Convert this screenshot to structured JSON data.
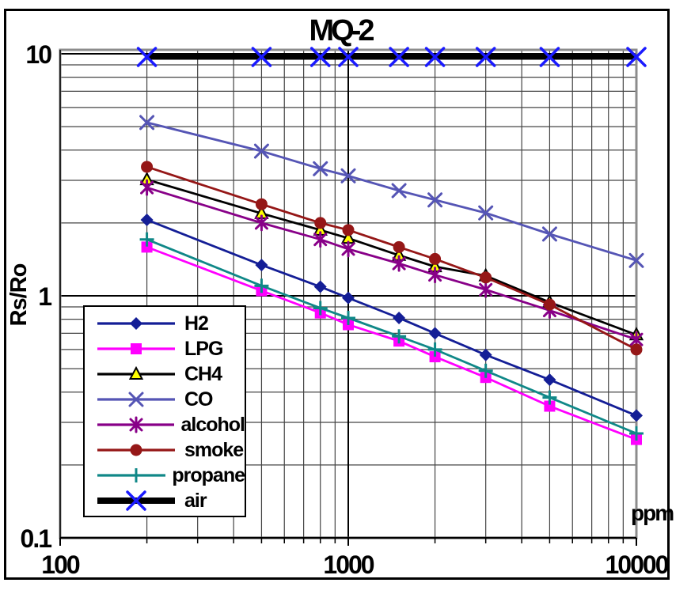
{
  "chart_data": {
    "type": "line",
    "title": "MQ-2",
    "ylabel": "Rs/Ro",
    "xlabel": "ppm",
    "x_scale": "log",
    "y_scale": "log",
    "xlim": [
      100,
      10000
    ],
    "ylim": [
      0.1,
      10
    ],
    "grid": {
      "minor_log_gridlines": true,
      "major_gridlines": true
    },
    "legend_position": "inside-bottom-left",
    "x_ticks": [
      {
        "value": 100,
        "label": "100"
      },
      {
        "value": 1000,
        "label": "1000"
      },
      {
        "value": 10000,
        "label": "10000"
      }
    ],
    "y_ticks": [
      {
        "value": 10,
        "label": "10"
      },
      {
        "value": 1,
        "label": "1"
      },
      {
        "value": 0.1,
        "label": "0.1"
      }
    ],
    "x": [
      200,
      500,
      800,
      1000,
      1500,
      2000,
      3000,
      5000,
      10000
    ],
    "series": [
      {
        "name": "H2",
        "color": "#141e96",
        "marker": "diamond",
        "line_width": 2.8,
        "values": [
          2.06,
          1.34,
          1.09,
          0.98,
          0.81,
          0.7,
          0.57,
          0.45,
          0.32
        ]
      },
      {
        "name": "LPG",
        "color": "#ff00ff",
        "marker": "square",
        "line_width": 2.8,
        "values": [
          1.59,
          1.05,
          0.85,
          0.76,
          0.65,
          0.56,
          0.46,
          0.35,
          0.255
        ]
      },
      {
        "name": "CH4",
        "color": "#000000",
        "marker": "triangle",
        "marker_fill": "#ffff00",
        "line_width": 2.8,
        "values": [
          3.02,
          2.19,
          1.87,
          1.73,
          1.47,
          1.32,
          1.21,
          0.94,
          0.69
        ]
      },
      {
        "name": "CO",
        "color": "#5555b5",
        "marker": "x",
        "line_width": 2.8,
        "values": [
          5.2,
          3.96,
          3.35,
          3.13,
          2.72,
          2.49,
          2.2,
          1.8,
          1.4
        ]
      },
      {
        "name": "alcohol",
        "color": "#880088",
        "marker": "asterisk",
        "line_width": 2.8,
        "values": [
          2.8,
          2.0,
          1.71,
          1.56,
          1.36,
          1.22,
          1.06,
          0.87,
          0.66
        ]
      },
      {
        "name": "smoke",
        "color": "#951717",
        "marker": "circle",
        "line_width": 2.8,
        "values": [
          3.41,
          2.39,
          2.0,
          1.87,
          1.59,
          1.42,
          1.19,
          0.92,
          0.6
        ]
      },
      {
        "name": "propane",
        "color": "#108888",
        "marker": "plus",
        "line_width": 2.8,
        "values": [
          1.71,
          1.1,
          0.89,
          0.81,
          0.68,
          0.6,
          0.49,
          0.38,
          0.27
        ]
      },
      {
        "name": "air",
        "color": "#000000",
        "marker": "x-bold",
        "marker_color": "#1a1aff",
        "line_width": 7,
        "values": [
          9.7,
          9.7,
          9.7,
          9.7,
          9.7,
          9.7,
          9.7,
          9.7,
          9.7
        ]
      }
    ]
  },
  "style": {
    "grid_minor_color": "#444444",
    "grid_major_color": "#000000",
    "plot_border_color": "#8c8c8c",
    "figure_border_color": "#000000",
    "background": "#ffffff"
  }
}
